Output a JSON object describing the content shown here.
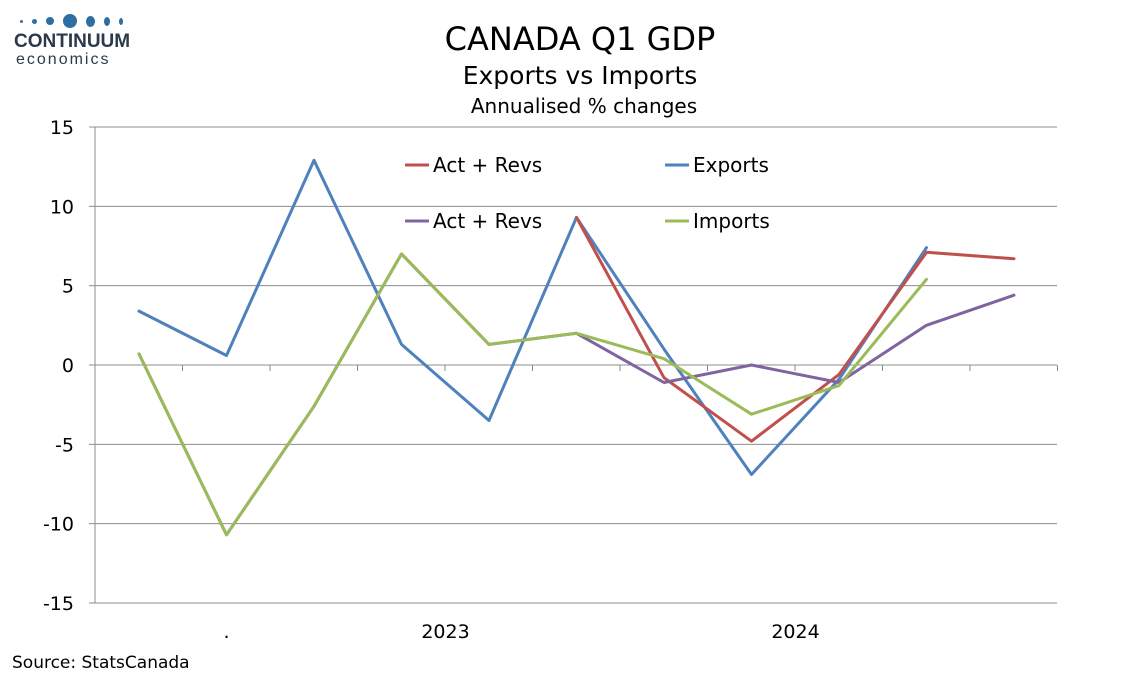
{
  "branding": {
    "name": "CONTINUUM",
    "sub": "economics"
  },
  "source": "Source: StatsCanada",
  "chart_data": {
    "type": "line",
    "title": "CANADA Q1 GDP",
    "subtitle": "Exports vs Imports",
    "subtitle2": "Annualised % changes",
    "ylim": [
      -15,
      15
    ],
    "yticks": [
      15,
      10,
      5,
      0,
      -5,
      -10,
      -15
    ],
    "x_count": 11,
    "x_labels": [
      {
        "index": 1,
        "label": "."
      },
      {
        "index": 3,
        "label": "2023"
      },
      {
        "index": 7,
        "label": "2024"
      }
    ],
    "grid": true,
    "legend_position": "top",
    "series": [
      {
        "name": "Act + Revs",
        "color": "#c0504d",
        "values": [
          null,
          null,
          null,
          null,
          null,
          9.3,
          -0.8,
          -4.8,
          -0.6,
          7.1,
          6.7
        ]
      },
      {
        "name": "Exports",
        "color": "#4f81bd",
        "values": [
          3.4,
          0.6,
          12.9,
          1.3,
          -3.5,
          9.3,
          1.0,
          -6.9,
          -0.9,
          7.4,
          null
        ]
      },
      {
        "name": "Act + Revs",
        "color": "#8064a2",
        "values": [
          0.7,
          -10.7,
          -2.6,
          7.0,
          1.3,
          2.0,
          -1.1,
          0.0,
          -1.1,
          2.5,
          4.4
        ]
      },
      {
        "name": "Imports",
        "color": "#9bbb59",
        "values": [
          0.7,
          -10.7,
          -2.6,
          7.0,
          1.3,
          2.0,
          0.4,
          -3.1,
          -1.3,
          5.4,
          null
        ]
      }
    ]
  }
}
